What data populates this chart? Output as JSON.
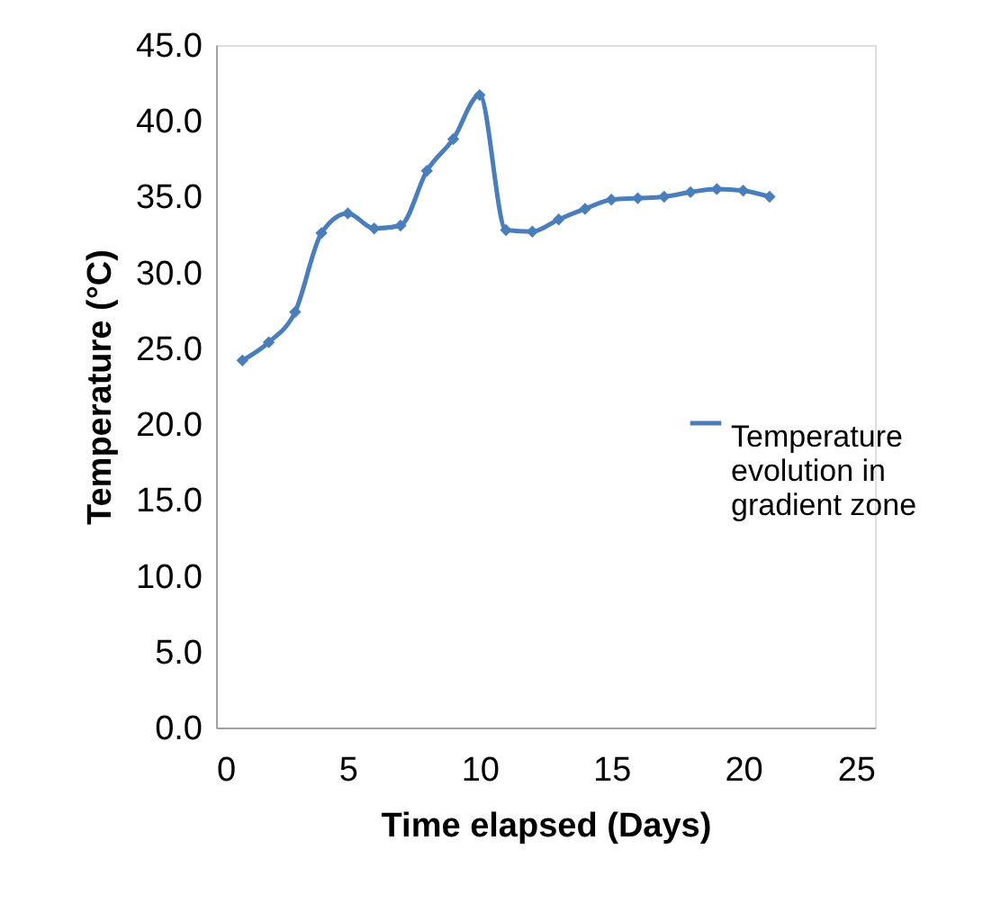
{
  "chart_data": {
    "type": "line",
    "xlabel": "Time elapsed (Days)",
    "ylabel": "Temperature (°C)",
    "x": [
      1,
      2,
      3,
      4,
      5,
      6,
      7,
      8,
      9,
      10,
      11,
      12,
      13,
      14,
      15,
      16,
      17,
      18,
      19,
      20,
      21
    ],
    "series": [
      {
        "name": "Temperature evolution in gradient zone",
        "color": "#4a7ebb",
        "values": [
          24.2,
          25.4,
          27.4,
          32.6,
          33.9,
          32.9,
          33.1,
          36.7,
          38.8,
          41.7,
          32.8,
          32.7,
          33.5,
          34.2,
          34.8,
          34.9,
          35.0,
          35.3,
          35.5,
          35.4,
          35.0
        ]
      }
    ],
    "xlim": [
      0,
      25
    ],
    "xticks": [
      0,
      5,
      10,
      15,
      20,
      25
    ],
    "ylim": [
      0,
      45
    ],
    "yticks": [
      {
        "value": 0,
        "label": "0.0"
      },
      {
        "value": 5,
        "label": "5.0"
      },
      {
        "value": 10,
        "label": "10.0"
      },
      {
        "value": 15,
        "label": "15.0"
      },
      {
        "value": 20,
        "label": "20.0"
      },
      {
        "value": 25,
        "label": "25.0"
      },
      {
        "value": 30,
        "label": "30.0"
      },
      {
        "value": 35,
        "label": "35.0"
      },
      {
        "value": 40,
        "label": "40.0"
      },
      {
        "value": 45,
        "label": "45.0"
      }
    ],
    "grid": false,
    "legend": "right",
    "marker": "diamond",
    "line_style": "solid"
  }
}
